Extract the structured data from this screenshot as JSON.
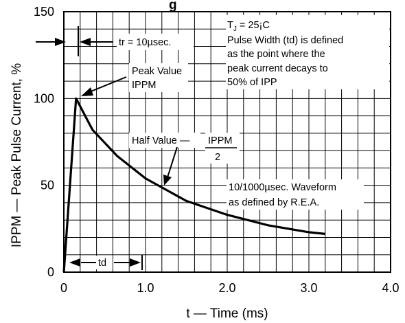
{
  "chart_data": {
    "type": "line",
    "title": "",
    "title_partial": "g",
    "xlabel": "t — Time (ms)",
    "ylabel": "IPPM — Peak Pulse Current, %",
    "xlim": [
      0,
      4.0
    ],
    "ylim": [
      0,
      150
    ],
    "x_ticks": [
      "0",
      "1.0",
      "2.0",
      "3.0",
      "4.0"
    ],
    "y_ticks": [
      "0",
      "50",
      "100",
      "150"
    ],
    "grid": true,
    "series": [
      {
        "x": [
          0,
          0.15,
          0.35,
          0.65,
          1.0,
          1.5,
          2.0,
          2.5,
          3.0,
          3.2
        ],
        "y": [
          0,
          100,
          82,
          67,
          54,
          41,
          33,
          27,
          23,
          22
        ]
      }
    ],
    "annotations": {
      "tj_line": "T",
      "tj_sub": "J",
      "tj_rest": " = 25¡C",
      "pulse_width": [
        "Pulse Width (td) is defined",
        "as the point where the",
        "peak current decays to",
        "50% of IPP"
      ],
      "tr": "tr = 10µsec.",
      "peak_value_line1": "Peak Value",
      "peak_value_line2": "IPPM",
      "half_value_label": "Half Value —",
      "half_value_numerator": "IPPM",
      "half_value_denominator": "2",
      "waveform": [
        "10/1000µsec. Waveform",
        "as defined by R.E.A."
      ],
      "td": "td"
    }
  }
}
